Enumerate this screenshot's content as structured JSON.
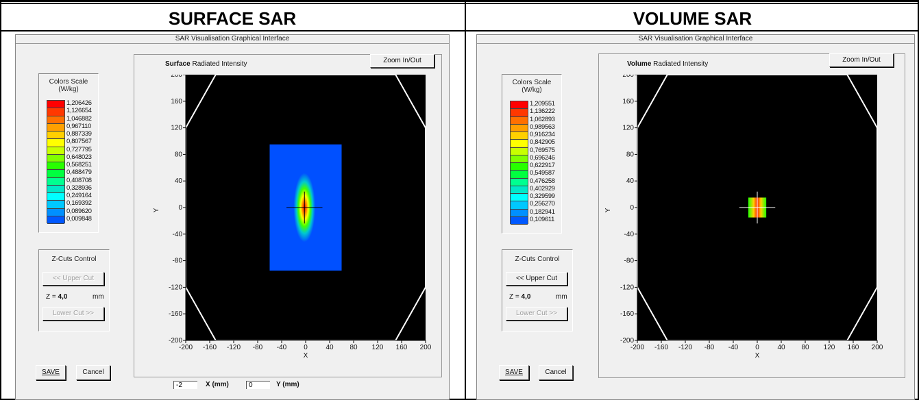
{
  "headers": {
    "left": "SURFACE SAR",
    "right": "VOLUME SAR"
  },
  "window_title": "SAR Visualisation Graphical Interface",
  "color_scale_title": "Colors Scale",
  "color_scale_unit": "(W/kg)",
  "scale_colors": [
    "#ff0000",
    "#ff3800",
    "#ff7000",
    "#ffa000",
    "#ffd000",
    "#ffff00",
    "#c8ff00",
    "#80ff00",
    "#28ff00",
    "#00ff40",
    "#00ff90",
    "#00e8c8",
    "#00ffff",
    "#00c8ff",
    "#0090ff",
    "#0058ff",
    "#0020ff"
  ],
  "zoom_label": "Zoom In/Out",
  "zcuts_title": "Z-Cuts Control",
  "upper_cut_label": "<< Upper Cut",
  "lower_cut_label": "Lower Cut >>",
  "z_prefix": "Z =",
  "z_value": "4,0",
  "z_unit": "mm",
  "save_label": "SAVE",
  "cancel_label": "Cancel",
  "surface": {
    "plot_title_bold": "Surface",
    "plot_title_rest": "Radiated Intensity",
    "scale_values": [
      "1,206426",
      "1,126654",
      "1,046882",
      "0,967110",
      "0,887339",
      "0,807567",
      "0,727795",
      "0,648023",
      "0,568251",
      "0,488479",
      "0,408708",
      "0,328936",
      "0,249164",
      "0,169392",
      "0,089620",
      "0,009848"
    ],
    "x_input": "-2",
    "x_label": "X (mm)",
    "y_input": "0",
    "y_label": "Y (mm)"
  },
  "volume": {
    "plot_title_bold": "Volume",
    "plot_title_rest": "Radiated Intensity",
    "scale_values": [
      "1,209551",
      "1,136222",
      "1,062893",
      "0,989563",
      "0,916234",
      "0,842905",
      "0,769575",
      "0,696246",
      "0,622917",
      "0,549587",
      "0,476258",
      "0,402929",
      "0,329599",
      "0,256270",
      "0,182941",
      "0,109611"
    ]
  },
  "chart_data": [
    {
      "type": "heatmap",
      "title": "Surface Radiated Intensity",
      "xlabel": "X",
      "ylabel": "Y",
      "xlim": [
        -200,
        200
      ],
      "ylim": [
        -200,
        200
      ],
      "x_ticks": [
        -200,
        -160,
        -120,
        -80,
        -40,
        0,
        40,
        80,
        120,
        160,
        200
      ],
      "y_ticks": [
        200,
        160,
        120,
        80,
        40,
        0,
        -40,
        -80,
        -120,
        -160,
        -200
      ],
      "scan_region": {
        "x": [
          -60,
          60
        ],
        "y": [
          -95,
          95
        ]
      },
      "hotspot_center": [
        -2,
        0
      ],
      "crosshair": [
        -2,
        0
      ]
    },
    {
      "type": "heatmap",
      "title": "Volume Radiated Intensity",
      "xlabel": "X",
      "ylabel": "Y",
      "xlim": [
        -200,
        200
      ],
      "ylim": [
        -200,
        200
      ],
      "x_ticks": [
        -200,
        -160,
        -120,
        -80,
        -40,
        0,
        40,
        80,
        120,
        160,
        200
      ],
      "y_ticks": [
        200,
        160,
        120,
        80,
        40,
        0,
        -40,
        -80,
        -120,
        -160,
        -200
      ],
      "scan_region": {
        "x": [
          -15,
          15
        ],
        "y": [
          -15,
          15
        ]
      },
      "hotspot_center": [
        0,
        0
      ],
      "crosshair": [
        0,
        0
      ]
    }
  ]
}
